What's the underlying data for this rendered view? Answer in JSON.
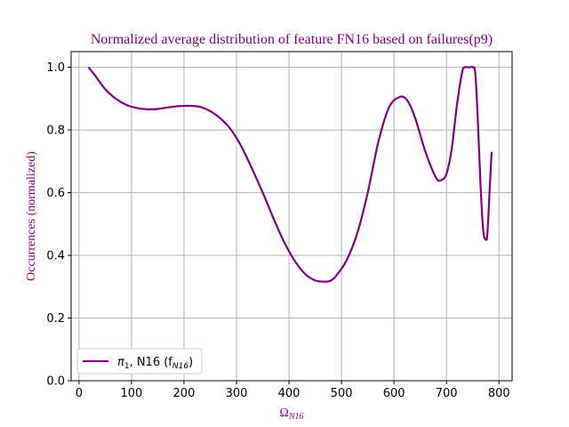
{
  "chart_data": {
    "type": "line",
    "title": "Normalized average distribution of feature FN16 based on failures(p9)",
    "xlabel": "Ω",
    "xlabel_sub": "N16",
    "ylabel": "Occurrences (normalized)",
    "xlim": [
      -15,
      825
    ],
    "ylim": [
      0,
      1.05
    ],
    "xticks": [
      0,
      100,
      200,
      300,
      400,
      500,
      600,
      700,
      800
    ],
    "yticks": [
      0.0,
      0.2,
      0.4,
      0.6,
      0.8,
      1.0
    ],
    "xtick_labels": [
      "0",
      "100",
      "200",
      "300",
      "400",
      "500",
      "600",
      "700",
      "800"
    ],
    "ytick_labels": [
      "0.0",
      "0.2",
      "0.4",
      "0.6",
      "0.8",
      "1.0"
    ],
    "grid": true,
    "legend_position": "lower-left",
    "series": [
      {
        "name": "π1, N16 (fN16)",
        "legend_parts": {
          "pi": "π",
          "pi_sub": "1",
          "mid": ", N16 (f",
          "f_sub": "N16",
          "end": ")"
        },
        "color": "#800080",
        "x": [
          18,
          30,
          50,
          70,
          90,
          110,
          130,
          150,
          170,
          190,
          210,
          230,
          250,
          270,
          290,
          310,
          330,
          350,
          370,
          390,
          410,
          430,
          450,
          470,
          480,
          490,
          510,
          530,
          550,
          570,
          590,
          610,
          625,
          640,
          660,
          680,
          690,
          700,
          710,
          720,
          730,
          735,
          740,
          745,
          750,
          755,
          760,
          765,
          770,
          775,
          778,
          782,
          786
        ],
        "y": [
          1.0,
          0.975,
          0.93,
          0.9,
          0.88,
          0.87,
          0.866,
          0.867,
          0.872,
          0.876,
          0.877,
          0.874,
          0.86,
          0.836,
          0.8,
          0.745,
          0.675,
          0.6,
          0.52,
          0.445,
          0.385,
          0.342,
          0.32,
          0.316,
          0.32,
          0.335,
          0.385,
          0.47,
          0.6,
          0.76,
          0.87,
          0.905,
          0.895,
          0.84,
          0.73,
          0.648,
          0.64,
          0.66,
          0.74,
          0.88,
          0.985,
          1.0,
          1.0,
          1.0,
          1.0,
          0.98,
          0.82,
          0.62,
          0.48,
          0.45,
          0.47,
          0.6,
          0.73
        ]
      }
    ]
  }
}
